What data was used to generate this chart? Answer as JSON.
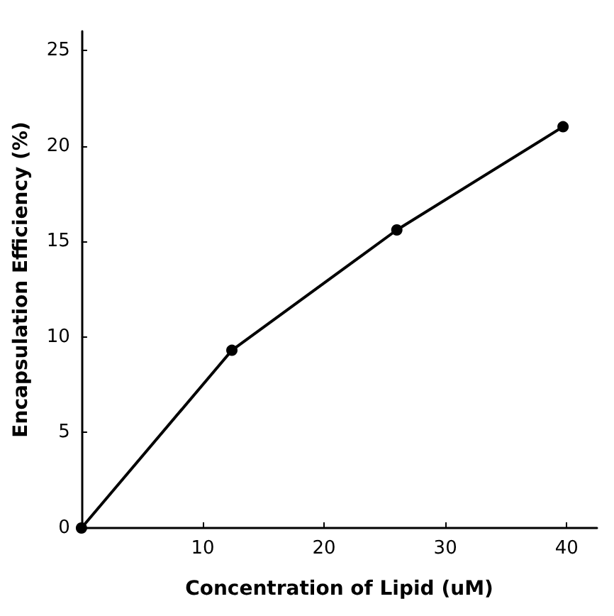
{
  "chart_data": {
    "type": "line",
    "xlabel": "Concentration of Lipid (uM)",
    "ylabel": "Encapsulation Efficiency (%)",
    "x": [
      0,
      12.4,
      26.0,
      39.7
    ],
    "series": [
      {
        "color": "#000000",
        "values": [
          0,
          9.3,
          15.6,
          21.0
        ]
      }
    ],
    "xlim": [
      0,
      42.5
    ],
    "xticks": [
      10,
      20,
      30,
      40
    ],
    "ylim": [
      0,
      26
    ],
    "yticks": [
      0,
      5,
      10,
      15,
      20,
      25
    ],
    "grid": false,
    "marker": "circle",
    "line_style": "solid"
  }
}
